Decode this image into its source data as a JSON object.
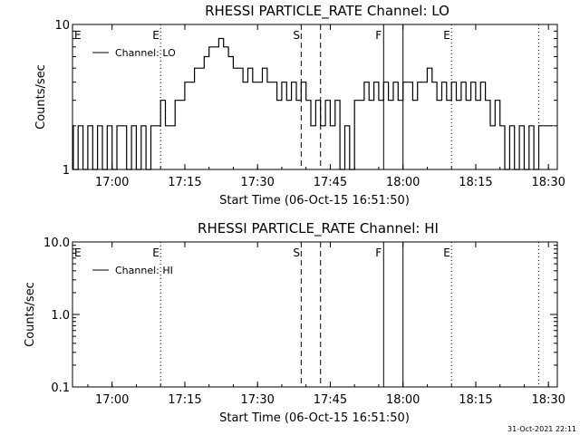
{
  "footer_timestamp": "31-Oct-2021 22:11",
  "chart_data": [
    {
      "type": "line",
      "title": "RHESSI PARTICLE_RATE Channel: LO",
      "xlabel": "Start Time (06-Oct-15 16:51:50)",
      "ylabel": "Counts/sec",
      "y_scale": "log",
      "ylim": [
        1,
        10
      ],
      "y_ticks": [
        {
          "v": 10,
          "label": "10"
        },
        {
          "v": 1,
          "label": "1"
        }
      ],
      "x_ticks": [
        "17:00",
        "17:15",
        "17:30",
        "17:45",
        "18:00",
        "18:15",
        "18:30"
      ],
      "legend": "top-left",
      "series": [
        {
          "name": "Channel: LO",
          "x_min_since_1651": [
            0,
            1,
            2,
            3,
            4,
            5,
            6,
            7,
            8,
            9,
            10,
            11,
            12,
            13,
            14,
            15,
            16,
            17,
            18,
            19,
            20,
            21,
            22,
            23,
            24,
            25,
            26,
            27,
            28,
            29,
            30,
            31,
            32,
            33,
            34,
            35,
            36,
            37,
            38,
            39,
            40,
            41,
            42,
            43,
            44,
            45,
            46,
            47,
            48,
            49,
            50,
            51,
            52,
            53,
            54,
            55,
            56,
            57,
            58,
            59,
            60,
            61,
            62,
            63,
            64,
            65,
            66,
            67,
            68,
            69,
            70,
            71,
            72,
            73,
            74,
            75,
            76,
            77,
            78,
            79,
            80,
            81,
            82,
            83,
            84,
            85,
            86,
            87,
            88,
            89,
            90,
            91,
            92,
            93,
            94,
            95,
            96,
            97,
            98,
            99
          ],
          "values": [
            2,
            1,
            2,
            1,
            2,
            1,
            2,
            1,
            2,
            1,
            2,
            2,
            1,
            2,
            1,
            2,
            1,
            2,
            2,
            3,
            2,
            2,
            3,
            3,
            4,
            4,
            5,
            5,
            6,
            7,
            7,
            8,
            7,
            6,
            5,
            5,
            4,
            5,
            4,
            4,
            5,
            4,
            4,
            3,
            4,
            3,
            4,
            3,
            4,
            3,
            2,
            3,
            2,
            3,
            2,
            3,
            1,
            2,
            1,
            3,
            3,
            4,
            3,
            4,
            3,
            4,
            3,
            4,
            3,
            4,
            4,
            3,
            4,
            4,
            5,
            4,
            3,
            4,
            3,
            4,
            3,
            4,
            3,
            4,
            3,
            4,
            3,
            2,
            3,
            2,
            1,
            2,
            1,
            2,
            1,
            2,
            1,
            2,
            2,
            2
          ]
        }
      ],
      "markers": [
        {
          "time": "17:10",
          "label": "E",
          "style": "dotted"
        },
        {
          "time": "17:39",
          "label": "S",
          "style": "dashed"
        },
        {
          "time": "17:43",
          "label": "",
          "style": "dashed"
        },
        {
          "time": "17:56",
          "label": "F",
          "style": "solid"
        },
        {
          "time": "18:00",
          "label": "",
          "style": "solid"
        },
        {
          "time": "18:10",
          "label": "E",
          "style": "dotted"
        },
        {
          "time": "18:28",
          "label": "",
          "style": "dotted"
        }
      ]
    },
    {
      "type": "line",
      "title": "RHESSI PARTICLE_RATE Channel: HI",
      "xlabel": "Start Time (06-Oct-15 16:51:50)",
      "ylabel": "Counts/sec",
      "y_scale": "log",
      "ylim": [
        0.1,
        10
      ],
      "y_ticks": [
        {
          "v": 10,
          "label": "10.0"
        },
        {
          "v": 1,
          "label": "1.0"
        },
        {
          "v": 0.1,
          "label": "0.1"
        }
      ],
      "x_ticks": [
        "17:00",
        "17:15",
        "17:30",
        "17:45",
        "18:00",
        "18:15",
        "18:30"
      ],
      "legend": "top-left",
      "series": [
        {
          "name": "Channel: HI",
          "values": []
        }
      ],
      "markers": [
        {
          "time": "17:10",
          "label": "E",
          "style": "dotted"
        },
        {
          "time": "17:39",
          "label": "S",
          "style": "dashed"
        },
        {
          "time": "17:43",
          "label": "",
          "style": "dashed"
        },
        {
          "time": "17:56",
          "label": "F",
          "style": "solid"
        },
        {
          "time": "18:00",
          "label": "",
          "style": "solid"
        },
        {
          "time": "18:10",
          "label": "E",
          "style": "dotted"
        },
        {
          "time": "18:28",
          "label": "",
          "style": "dotted"
        }
      ]
    }
  ]
}
